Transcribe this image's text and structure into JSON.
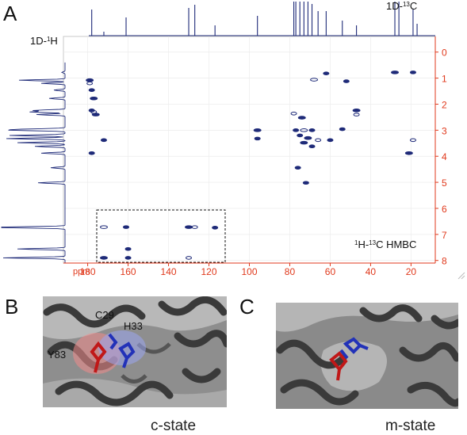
{
  "panels": {
    "a": "A",
    "b": "B",
    "c": "C"
  },
  "spectrum": {
    "label_13c": "1D-13C",
    "label_1h": "1D-1H",
    "label_hmbc": "1H-13C HMBC",
    "colors": {
      "axis": "#e0391c",
      "contour": "#1e2a78",
      "frame": "#999999"
    }
  },
  "chart_data": {
    "type": "scatter",
    "title": "",
    "xlabel": "ppm",
    "ylabel": "",
    "x_unit": "ppm",
    "x_ticks": [
      180,
      160,
      140,
      120,
      100,
      80,
      60,
      40,
      20
    ],
    "y_ticks": [
      0,
      1,
      2,
      3,
      4,
      5,
      6,
      7,
      8
    ],
    "xlim": [
      192,
      8
    ],
    "ylim": [
      8.1,
      -0.6
    ],
    "x_reversed": true,
    "grid": true,
    "series": [
      {
        "values": [
          [
            179,
            1.08
          ],
          [
            179,
            1.2
          ],
          [
            178,
            1.46
          ],
          [
            177,
            1.78
          ],
          [
            178,
            2.24
          ],
          [
            177,
            2.3
          ],
          [
            176,
            2.4
          ],
          [
            172,
            3.38
          ],
          [
            178,
            3.88
          ],
          [
            172,
            6.72
          ],
          [
            161,
            6.72
          ],
          [
            160,
            7.56
          ],
          [
            130,
            6.72
          ],
          [
            127,
            6.72
          ],
          [
            117,
            6.74
          ],
          [
            172,
            7.9
          ],
          [
            160,
            7.9
          ],
          [
            130,
            7.9
          ],
          [
            96,
            3.0
          ],
          [
            96,
            3.32
          ],
          [
            77,
            3.0
          ],
          [
            73,
            3.0
          ],
          [
            69,
            3.0
          ],
          [
            75,
            3.2
          ],
          [
            71,
            3.3
          ],
          [
            66,
            3.38
          ],
          [
            60,
            3.38
          ],
          [
            73,
            3.48
          ],
          [
            69,
            3.62
          ],
          [
            78,
            2.36
          ],
          [
            74,
            2.52
          ],
          [
            76,
            4.44
          ],
          [
            72,
            5.02
          ],
          [
            68,
            1.06
          ],
          [
            52,
            1.12
          ],
          [
            54,
            2.96
          ],
          [
            47,
            2.24
          ],
          [
            47,
            2.4
          ],
          [
            62,
            0.82
          ],
          [
            28,
            0.78
          ],
          [
            19,
            0.78
          ],
          [
            19,
            3.38
          ],
          [
            21,
            3.88
          ]
        ]
      }
    ]
  },
  "panel_b": {
    "labels": [
      "C29",
      "H33",
      "Y83"
    ],
    "state": "c-state"
  },
  "panel_c": {
    "state": "m-state"
  }
}
